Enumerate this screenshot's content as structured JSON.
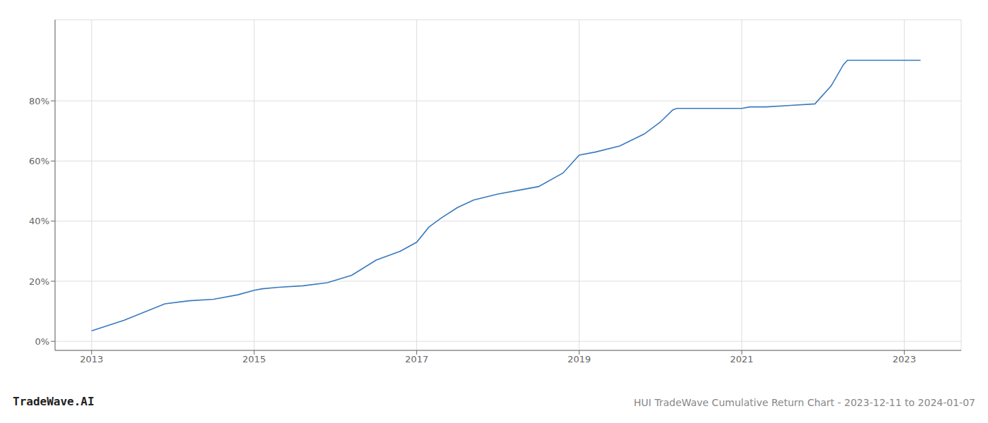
{
  "chart_data": {
    "type": "line",
    "title": "HUI TradeWave Cumulative Return Chart - 2023-12-11 to 2024-01-07",
    "annotations": [
      "TradeWave.AI"
    ],
    "x": [
      2013.0,
      2013.4,
      2013.9,
      2014.2,
      2014.5,
      2014.8,
      2015.0,
      2015.1,
      2015.3,
      2015.6,
      2015.9,
      2016.2,
      2016.5,
      2016.8,
      2017.0,
      2017.15,
      2017.3,
      2017.5,
      2017.7,
      2018.0,
      2018.3,
      2018.5,
      2018.8,
      2019.0,
      2019.2,
      2019.5,
      2019.8,
      2020.0,
      2020.15,
      2020.2,
      2020.4,
      2020.6,
      2020.8,
      2021.0,
      2021.1,
      2021.3,
      2021.6,
      2021.9,
      2022.1,
      2022.25,
      2022.3,
      2022.5,
      2022.8,
      2023.0,
      2023.2
    ],
    "values": [
      3.5,
      7.0,
      12.5,
      13.5,
      14.0,
      15.5,
      17.0,
      17.5,
      18.0,
      18.5,
      19.5,
      22.0,
      27.0,
      30.0,
      33.0,
      38.0,
      41.0,
      44.5,
      47.0,
      49.0,
      50.5,
      51.5,
      56.0,
      62.0,
      63.0,
      65.0,
      69.0,
      73.0,
      77.0,
      77.5,
      77.5,
      77.5,
      77.5,
      77.5,
      78.0,
      78.0,
      78.5,
      79.0,
      85.0,
      92.0,
      93.5,
      93.5,
      93.5,
      93.5,
      93.5
    ],
    "color": "#3a7abf",
    "xlim": [
      2012.55,
      2023.7
    ],
    "ylim": [
      -3,
      107
    ],
    "xticks": [
      2013,
      2015,
      2017,
      2019,
      2021,
      2023
    ],
    "yticks": [
      {
        "value": 0,
        "label": "0%"
      },
      {
        "value": 20,
        "label": "20%"
      },
      {
        "value": 40,
        "label": "40%"
      },
      {
        "value": 60,
        "label": "60%"
      },
      {
        "value": 80,
        "label": "80%"
      }
    ],
    "grid": true
  }
}
